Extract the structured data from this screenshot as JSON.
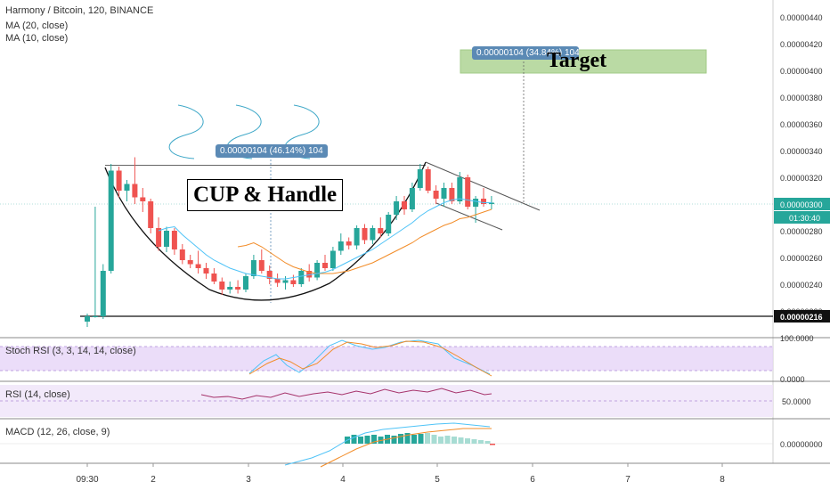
{
  "legend": {
    "title": "Harmony / Bitcoin, 120, BINANCE",
    "ma20": "MA (20, close)",
    "ma10": "MA (10, close)"
  },
  "annotations": {
    "cup_handle": "CUP & Handle",
    "target": "Target",
    "measure_label": "0.00000104 (46.14%) 104",
    "target_measure_label": "0.00000104 (34.84%) 104"
  },
  "price_axis": {
    "ticks": [
      "0.00000440",
      "0.00000420",
      "0.00000400",
      "0.00000380",
      "0.00000360",
      "0.00000340",
      "0.00000320",
      "0.00000300",
      "0.00000280",
      "0.00000260",
      "0.00000240",
      "0.00000220"
    ],
    "current_price": "0.00000300",
    "countdown": "01:30:40",
    "support_price": "0.00000216"
  },
  "time_axis": {
    "ticks": [
      "09:30",
      "2",
      "3",
      "4",
      "5",
      "6",
      "7",
      "8"
    ]
  },
  "panes": {
    "stoch": {
      "label": "Stoch RSI (3, 3, 14, 14, close)",
      "axis_top": "100.0000",
      "axis_bottom": "0.0000"
    },
    "rsi": {
      "label": "RSI (14, close)",
      "axis": "50.0000"
    },
    "macd": {
      "label": "MACD (12, 26, close, 9)",
      "axis": "0.00000000"
    }
  },
  "colors": {
    "up": "#26a69a",
    "down": "#ef5350",
    "ma20": "#f28c28",
    "ma10": "#4fc3f7",
    "stoch_fill": "#e6d5f7",
    "rsi_fill": "#efe4f9",
    "rsi_line": "#a6336b",
    "measure": "#5b8ab5",
    "target_box": "#a9d18e"
  },
  "chart_data": {
    "type": "candlestick",
    "symbol": "Harmony / Bitcoin",
    "interval": "120",
    "exchange": "BINANCE",
    "ylim": [
      2e-06,
      4.5e-06
    ],
    "candles": [
      [
        2.12e-06,
        2.18e-06,
        2.08e-06,
        2.16e-06
      ],
      [
        2.16e-06,
        2.98e-06,
        2.15e-06,
        2.16e-06
      ],
      [
        2.16e-06,
        2.55e-06,
        2.14e-06,
        2.5e-06
      ],
      [
        2.5e-06,
        3.3e-06,
        2.48e-06,
        3.25e-06
      ],
      [
        3.25e-06,
        3.28e-06,
        3.05e-06,
        3.1e-06
      ],
      [
        3.1e-06,
        3.18e-06,
        3.02e-06,
        3.15e-06
      ],
      [
        3.15e-06,
        3.35e-06,
        3e-06,
        3.05e-06
      ],
      [
        3.05e-06,
        3.12e-06,
        2.94e-06,
        3.02e-06
      ],
      [
        3.02e-06,
        3.04e-06,
        2.78e-06,
        2.82e-06
      ],
      [
        2.82e-06,
        2.9e-06,
        2.65e-06,
        2.68e-06
      ],
      [
        2.68e-06,
        2.83e-06,
        2.64e-06,
        2.8e-06
      ],
      [
        2.8e-06,
        2.82e-06,
        2.62e-06,
        2.66e-06
      ],
      [
        2.66e-06,
        2.7e-06,
        2.55e-06,
        2.58e-06
      ],
      [
        2.58e-06,
        2.62e-06,
        2.52e-06,
        2.55e-06
      ],
      [
        2.55e-06,
        2.65e-06,
        2.48e-06,
        2.52e-06
      ],
      [
        2.52e-06,
        2.56e-06,
        2.44e-06,
        2.48e-06
      ],
      [
        2.48e-06,
        2.52e-06,
        2.4e-06,
        2.42e-06
      ],
      [
        2.42e-06,
        2.45e-06,
        2.32e-06,
        2.36e-06
      ],
      [
        2.36e-06,
        2.42e-06,
        2.33e-06,
        2.38e-06
      ],
      [
        2.38e-06,
        2.43e-06,
        2.33e-06,
        2.36e-06
      ],
      [
        2.36e-06,
        2.48e-06,
        2.34e-06,
        2.46e-06
      ],
      [
        2.46e-06,
        2.62e-06,
        2.44e-06,
        2.58e-06
      ],
      [
        2.58e-06,
        2.66e-06,
        2.48e-06,
        2.5e-06
      ],
      [
        2.5e-06,
        2.54e-06,
        2.4e-06,
        2.44e-06
      ],
      [
        2.44e-06,
        2.48e-06,
        2.38e-06,
        2.41e-06
      ],
      [
        2.41e-06,
        2.46e-06,
        2.36e-06,
        2.43e-06
      ],
      [
        2.43e-06,
        2.47e-06,
        2.38e-06,
        2.4e-06
      ],
      [
        2.4e-06,
        2.52e-06,
        2.38e-06,
        2.5e-06
      ],
      [
        2.5e-06,
        2.55e-06,
        2.42e-06,
        2.45e-06
      ],
      [
        2.45e-06,
        2.58e-06,
        2.43e-06,
        2.56e-06
      ],
      [
        2.56e-06,
        2.62e-06,
        2.5e-06,
        2.52e-06
      ],
      [
        2.52e-06,
        2.68e-06,
        2.5e-06,
        2.65e-06
      ],
      [
        2.65e-06,
        2.78e-06,
        2.62e-06,
        2.72e-06
      ],
      [
        2.72e-06,
        2.75e-06,
        2.66e-06,
        2.69e-06
      ],
      [
        2.69e-06,
        2.84e-06,
        2.66e-06,
        2.82e-06
      ],
      [
        2.82e-06,
        2.85e-06,
        2.7e-06,
        2.73e-06
      ],
      [
        2.73e-06,
        2.84e-06,
        2.7e-06,
        2.82e-06
      ],
      [
        2.82e-06,
        2.9e-06,
        2.75e-06,
        2.78e-06
      ],
      [
        2.78e-06,
        2.94e-06,
        2.76e-06,
        2.92e-06
      ],
      [
        2.92e-06,
        3.06e-06,
        2.88e-06,
        3.02e-06
      ],
      [
        3.02e-06,
        3.06e-06,
        2.92e-06,
        2.96e-06
      ],
      [
        2.96e-06,
        3.16e-06,
        2.94e-06,
        3.12e-06
      ],
      [
        3.12e-06,
        3.3e-06,
        3.1e-06,
        3.26e-06
      ],
      [
        3.26e-06,
        3.28e-06,
        3.08e-06,
        3.1e-06
      ],
      [
        3.1e-06,
        3.14e-06,
        3e-06,
        3.04e-06
      ],
      [
        3.04e-06,
        3.16e-06,
        2.98e-06,
        3.12e-06
      ],
      [
        3.12e-06,
        3.16e-06,
        3e-06,
        3.02e-06
      ],
      [
        3.02e-06,
        3.24e-06,
        3e-06,
        3.2e-06
      ],
      [
        3.2e-06,
        3.22e-06,
        2.96e-06,
        2.98e-06
      ],
      [
        2.98e-06,
        3.06e-06,
        2.86e-06,
        3.04e-06
      ],
      [
        3.04e-06,
        3.12e-06,
        2.98e-06,
        3e-06
      ],
      [
        3e-06,
        3.06e-06,
        2.96e-06,
        3.01e-06
      ]
    ],
    "ma20": [
      null,
      null,
      null,
      null,
      null,
      null,
      null,
      null,
      null,
      null,
      null,
      null,
      null,
      null,
      null,
      null,
      null,
      null,
      null,
      2.68e-06,
      2.69e-06,
      2.71e-06,
      2.68e-06,
      2.64e-06,
      2.6e-06,
      2.56e-06,
      2.53e-06,
      2.51e-06,
      2.49e-06,
      2.48e-06,
      2.48e-06,
      2.48e-06,
      2.49e-06,
      2.5e-06,
      2.52e-06,
      2.54e-06,
      2.56e-06,
      2.59e-06,
      2.62e-06,
      2.65e-06,
      2.68e-06,
      2.71e-06,
      2.75e-06,
      2.78e-06,
      2.81e-06,
      2.84e-06,
      2.86e-06,
      2.89e-06,
      2.9e-06,
      2.92e-06,
      2.94e-06,
      2.96e-06
    ],
    "ma10": [
      null,
      null,
      null,
      null,
      null,
      null,
      null,
      null,
      null,
      2.8e-06,
      2.82e-06,
      2.83e-06,
      2.77e-06,
      2.72e-06,
      2.67e-06,
      2.62e-06,
      2.58e-06,
      2.55e-06,
      2.52e-06,
      2.5e-06,
      2.48e-06,
      2.47e-06,
      2.46e-06,
      2.45e-06,
      2.44e-06,
      2.44e-06,
      2.45e-06,
      2.46e-06,
      2.47e-06,
      2.48e-06,
      2.49e-06,
      2.51e-06,
      2.54e-06,
      2.57e-06,
      2.6e-06,
      2.63e-06,
      2.66e-06,
      2.7e-06,
      2.74e-06,
      2.78e-06,
      2.82e-06,
      2.86e-06,
      2.91e-06,
      2.95e-06,
      2.98e-06,
      3.01e-06,
      3.03e-06,
      3.04e-06,
      3.03e-06,
      3.02e-06,
      3.01e-06,
      3.01e-06
    ],
    "support_level": 2.16e-06,
    "current_price": 3e-06,
    "cup_rim_level": 3.29e-06,
    "measured_move": 1.04e-06,
    "target_level": 4.04e-06
  }
}
